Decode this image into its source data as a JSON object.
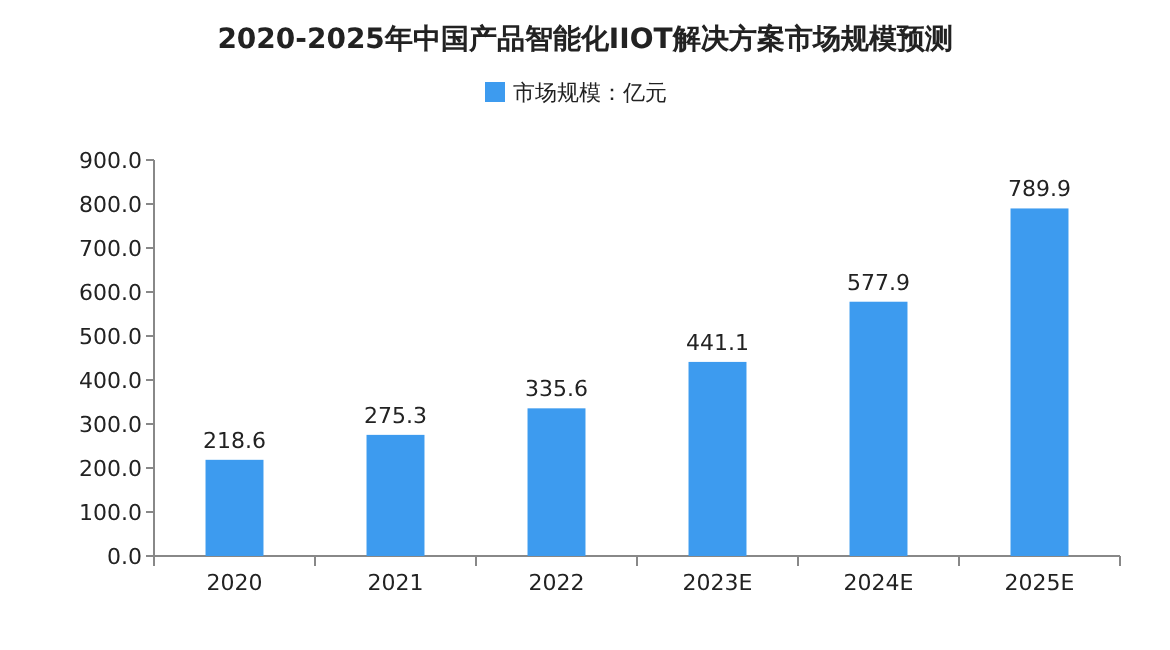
{
  "chart_data": {
    "type": "bar",
    "title": "2020-2025年中国产品智能化IIOT解决方案市场规模预测",
    "categories": [
      "2020",
      "2021",
      "2022",
      "2023E",
      "2024E",
      "2025E"
    ],
    "series": [
      {
        "name": "市场规模：亿元",
        "color": "#3d9bef",
        "values": [
          218.6,
          275.3,
          335.6,
          441.1,
          577.9,
          789.9
        ]
      }
    ],
    "ylim": [
      0,
      900
    ],
    "yticks": [
      {
        "value": 0,
        "label": "0.0"
      },
      {
        "value": 100,
        "label": "100.0"
      },
      {
        "value": 200,
        "label": "200.0"
      },
      {
        "value": 300,
        "label": "300.0"
      },
      {
        "value": 400,
        "label": "400.0"
      },
      {
        "value": 500,
        "label": "500.0"
      },
      {
        "value": 600,
        "label": "600.0"
      },
      {
        "value": 700,
        "label": "700.0"
      },
      {
        "value": 800,
        "label": "800.0"
      },
      {
        "value": 900,
        "label": "900.0"
      }
    ],
    "data_labels": true,
    "grid": false,
    "legend": "top"
  }
}
